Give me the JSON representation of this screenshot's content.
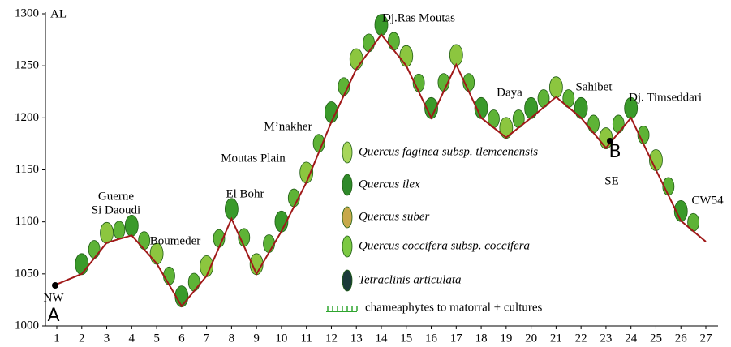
{
  "chart_data": {
    "type": "line",
    "y_label": "AL",
    "x": [
      1,
      2,
      3,
      4,
      5,
      6,
      7,
      8,
      9,
      10,
      11,
      12,
      13,
      14,
      15,
      16,
      17,
      18,
      19,
      20,
      21,
      22,
      23,
      24,
      25,
      26,
      27
    ],
    "values": [
      1040,
      1050,
      1080,
      1087,
      1060,
      1019,
      1048,
      1103,
      1050,
      1091,
      1138,
      1196,
      1247,
      1280,
      1250,
      1200,
      1251,
      1200,
      1181,
      1200,
      1220,
      1200,
      1171,
      1200,
      1150,
      1101,
      1081
    ],
    "color": "#a01818",
    "xlim": [
      1,
      27
    ],
    "xticks": [
      1,
      2,
      3,
      4,
      5,
      6,
      7,
      8,
      9,
      10,
      11,
      12,
      13,
      14,
      15,
      16,
      17,
      18,
      19,
      20,
      21,
      22,
      23,
      24,
      25,
      26,
      27
    ],
    "ylim": [
      1000,
      1300
    ],
    "yticks": [
      1000,
      1050,
      1100,
      1150,
      1200,
      1250,
      1300
    ],
    "annotations": [
      "NW",
      "A",
      "Guerne",
      "Si Daoudi",
      "Boumeder",
      "El Bohr",
      "Moutas Plain",
      "M’nakher",
      "Dj.Ras Moutas",
      "Daya",
      "Sahibet",
      "Dj. Timseddari",
      "SE",
      "B",
      "CW54"
    ],
    "legend": [
      "Quercus faginea subsp. tlemcenensis",
      "Quercus ilex",
      "Quercus suber",
      "Quercus coccifera subsp. coccifera",
      "Tetraclinis articulata",
      "chameaphytes to matorral + cultures"
    ]
  }
}
